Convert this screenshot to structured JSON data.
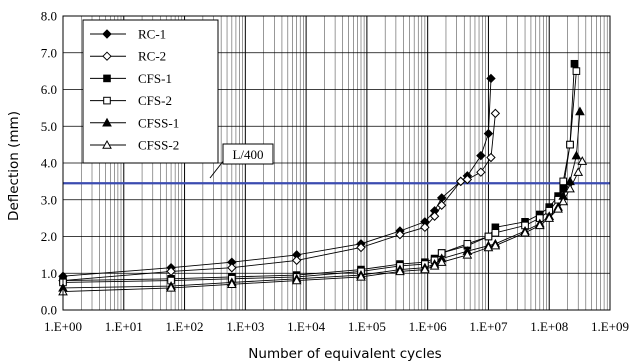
{
  "chart_data": {
    "type": "line",
    "xlabel": "Number of equivalent cycles",
    "ylabel": "Deflection (mm)",
    "xscale": "log",
    "xlim": [
      1,
      1000000000
    ],
    "ylim": [
      0,
      8
    ],
    "grid": true,
    "legend_position": "top-left",
    "x_tick_labels": [
      "1.E+00",
      "1.E+01",
      "1.E+02",
      "1.E+03",
      "1.E+04",
      "1.E+05",
      "1.E+06",
      "1.E+07",
      "1.E+08",
      "1.E+09"
    ],
    "y_tick_labels": [
      "0.0",
      "1.0",
      "2.0",
      "3.0",
      "4.0",
      "5.0",
      "6.0",
      "7.0",
      "8.0"
    ],
    "reference_line": {
      "label": "L/400",
      "y": 3.45,
      "color": "#3b4bb0"
    },
    "series": [
      {
        "name": "RC-1",
        "marker": "diamond-filled",
        "color": "#000000",
        "points": [
          [
            1,
            0.92
          ],
          [
            60,
            1.15
          ],
          [
            600,
            1.3
          ],
          [
            7000,
            1.5
          ],
          [
            80000,
            1.8
          ],
          [
            350000,
            2.15
          ],
          [
            900000,
            2.4
          ],
          [
            1300000,
            2.7
          ],
          [
            1700000,
            3.05
          ],
          [
            3500000,
            3.5
          ],
          [
            4500000,
            3.65
          ],
          [
            7500000,
            4.2
          ],
          [
            10000000,
            4.8
          ],
          [
            11000000,
            6.3
          ]
        ]
      },
      {
        "name": "RC-2",
        "marker": "diamond-open",
        "color": "#000000",
        "points": [
          [
            1,
            0.8
          ],
          [
            60,
            1.05
          ],
          [
            600,
            1.15
          ],
          [
            7000,
            1.35
          ],
          [
            80000,
            1.7
          ],
          [
            350000,
            2.05
          ],
          [
            900000,
            2.25
          ],
          [
            1300000,
            2.55
          ],
          [
            1700000,
            2.85
          ],
          [
            3500000,
            3.5
          ],
          [
            4500000,
            3.55
          ],
          [
            7500000,
            3.75
          ],
          [
            11000000,
            4.15
          ],
          [
            13000000,
            5.35
          ]
        ]
      },
      {
        "name": "CFS-1",
        "marker": "square-filled",
        "color": "#000000",
        "points": [
          [
            1,
            0.8
          ],
          [
            60,
            0.85
          ],
          [
            600,
            0.9
          ],
          [
            7000,
            0.95
          ],
          [
            80000,
            1.1
          ],
          [
            350000,
            1.25
          ],
          [
            900000,
            1.3
          ],
          [
            1300000,
            1.4
          ],
          [
            1700000,
            1.55
          ],
          [
            4500000,
            1.75
          ],
          [
            10000000,
            2.0
          ],
          [
            13000000,
            2.25
          ],
          [
            40000000,
            2.4
          ],
          [
            70000000,
            2.6
          ],
          [
            100000000,
            2.8
          ],
          [
            140000000,
            3.1
          ],
          [
            170000000,
            3.3
          ],
          [
            220000000,
            4.5
          ],
          [
            260000000,
            6.7
          ]
        ]
      },
      {
        "name": "CFS-2",
        "marker": "square-open",
        "color": "#000000",
        "points": [
          [
            1,
            0.75
          ],
          [
            60,
            0.8
          ],
          [
            600,
            0.85
          ],
          [
            7000,
            0.9
          ],
          [
            80000,
            1.05
          ],
          [
            350000,
            1.2
          ],
          [
            900000,
            1.25
          ],
          [
            1300000,
            1.35
          ],
          [
            1700000,
            1.55
          ],
          [
            4500000,
            1.8
          ],
          [
            10000000,
            2.0
          ],
          [
            13000000,
            2.1
          ],
          [
            40000000,
            2.3
          ],
          [
            70000000,
            2.5
          ],
          [
            100000000,
            2.7
          ],
          [
            140000000,
            3.0
          ],
          [
            170000000,
            3.5
          ],
          [
            220000000,
            4.5
          ],
          [
            280000000,
            6.5
          ]
        ]
      },
      {
        "name": "CFSS-1",
        "marker": "triangle-filled",
        "color": "#000000",
        "points": [
          [
            1,
            0.6
          ],
          [
            60,
            0.65
          ],
          [
            600,
            0.75
          ],
          [
            7000,
            0.85
          ],
          [
            80000,
            0.95
          ],
          [
            350000,
            1.1
          ],
          [
            900000,
            1.15
          ],
          [
            1300000,
            1.25
          ],
          [
            1700000,
            1.4
          ],
          [
            4500000,
            1.6
          ],
          [
            10000000,
            1.75
          ],
          [
            13000000,
            1.8
          ],
          [
            40000000,
            2.15
          ],
          [
            70000000,
            2.35
          ],
          [
            100000000,
            2.55
          ],
          [
            140000000,
            2.8
          ],
          [
            170000000,
            3.1
          ],
          [
            220000000,
            3.5
          ],
          [
            280000000,
            4.2
          ],
          [
            320000000,
            5.4
          ]
        ]
      },
      {
        "name": "CFSS-2",
        "marker": "triangle-open",
        "color": "#000000",
        "points": [
          [
            1,
            0.5
          ],
          [
            60,
            0.6
          ],
          [
            600,
            0.7
          ],
          [
            7000,
            0.8
          ],
          [
            80000,
            0.9
          ],
          [
            350000,
            1.05
          ],
          [
            900000,
            1.1
          ],
          [
            1300000,
            1.2
          ],
          [
            1700000,
            1.3
          ],
          [
            4500000,
            1.5
          ],
          [
            10000000,
            1.7
          ],
          [
            13000000,
            1.75
          ],
          [
            40000000,
            2.1
          ],
          [
            70000000,
            2.3
          ],
          [
            100000000,
            2.5
          ],
          [
            140000000,
            2.75
          ],
          [
            170000000,
            2.95
          ],
          [
            220000000,
            3.3
          ],
          [
            300000000,
            3.75
          ],
          [
            350000000,
            4.05
          ]
        ]
      }
    ]
  }
}
